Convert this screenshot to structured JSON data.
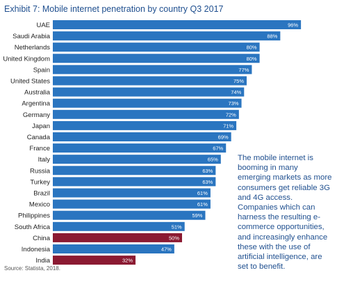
{
  "title": "Exhibit 7: Mobile internet penetration by country Q3 2017",
  "callout": "The mobile internet is booming in many emerging markets as more consumers get reliable 3G and 4G access. Companies which can harness the resulting e-commerce opportunities, and increasingly enhance these with the use of artificial intelligence, are set to benefit.",
  "source": "Source: Statista, 2018.",
  "colors": {
    "default": "#2a75c0",
    "highlight": "#8b1a32",
    "title": "#1f4f8f"
  },
  "chart_data": {
    "type": "bar",
    "orientation": "horizontal",
    "title": "Exhibit 7: Mobile internet penetration by country Q3 2017",
    "xlabel": "",
    "ylabel": "",
    "xlim": [
      0,
      100
    ],
    "grid": false,
    "categories": [
      "UAE",
      "Saudi Arabia",
      "Netherlands",
      "United Kingdom",
      "Spain",
      "United States",
      "Australia",
      "Argentina",
      "Germany",
      "Japan",
      "Canada",
      "France",
      "Italy",
      "Russia",
      "Turkey",
      "Brazil",
      "Mexico",
      "Philippines",
      "South Africa",
      "China",
      "Indonesia",
      "India"
    ],
    "values": [
      96,
      88,
      80,
      80,
      77,
      75,
      74,
      73,
      72,
      71,
      69,
      67,
      65,
      63,
      63,
      61,
      61,
      59,
      51,
      50,
      47,
      32
    ],
    "labels": [
      "96%",
      "88%",
      "80%",
      "80%",
      "77%",
      "75%",
      "74%",
      "73%",
      "72%",
      "71%",
      "69%",
      "67%",
      "65%",
      "63%",
      "63%",
      "61%",
      "61%",
      "59%",
      "51%",
      "50%",
      "47%",
      "32%"
    ],
    "highlighted": [
      "China",
      "India"
    ]
  }
}
